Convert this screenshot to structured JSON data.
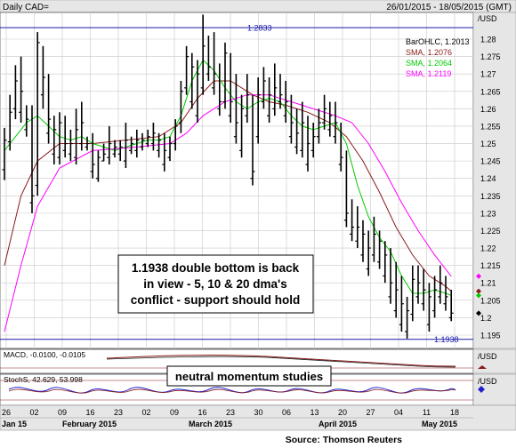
{
  "header": {
    "title": "Daily CAD=",
    "date_range": "26/01/2015 - 18/05/2015 (GMT)"
  },
  "chart_data": {
    "type": "ohlc",
    "instrument": "CAD=",
    "ylim": [
      1.19,
      1.29
    ],
    "y_ticks": [
      "1.28",
      "1.275",
      "1.27",
      "1.265",
      "1.26",
      "1.255",
      "1.25",
      "1.245",
      "1.24",
      "1.235",
      "1.23",
      "1.225",
      "1.22",
      "1.215",
      "1.21",
      "1.205",
      "1.2",
      "1.195"
    ],
    "y_unit": "/USD",
    "x_ticks": [
      "26",
      "02",
      "09",
      "16",
      "23",
      "02",
      "09",
      "16",
      "23",
      "30",
      "06",
      "13",
      "20",
      "27",
      "04",
      "11",
      "18"
    ],
    "x_month_labels": [
      "Jan 15",
      "February 2015",
      "March 2015",
      "April 2015",
      "May 2015"
    ],
    "legend": [
      {
        "text": "BarOHLC, 1.2013",
        "color": "#000000"
      },
      {
        "text": "SMA, 1.2076",
        "color": "#8b1a1a"
      },
      {
        "text": "SMA, 1.2064",
        "color": "#00cc00"
      },
      {
        "text": "SMA, 1.2119",
        "color": "#ff00ff"
      }
    ],
    "reference_lines": [
      {
        "label": "1.2833",
        "value": 1.2833,
        "color": "#1a1aa6"
      },
      {
        "label": "1.1938",
        "value": 1.1938,
        "color": "#1a1aa6"
      }
    ],
    "annotation": {
      "lines": [
        "1.1938 double bottom is back",
        "in view - 5, 10 & 20 dma's",
        "conflict - support should hold"
      ]
    },
    "bars": [
      [
        1.2395,
        1.2545,
        1.2425,
        1.251
      ],
      [
        1.248,
        1.264,
        1.2505,
        1.259
      ],
      [
        1.257,
        1.2725,
        1.26,
        1.268
      ],
      [
        1.256,
        1.275,
        1.259,
        1.265
      ],
      [
        1.252,
        1.261,
        1.254,
        1.257
      ],
      [
        1.23,
        1.261,
        1.233,
        1.235
      ],
      [
        1.235,
        1.282,
        1.238,
        1.279
      ],
      [
        1.26,
        1.278,
        1.264,
        1.269
      ],
      [
        1.25,
        1.27,
        1.253,
        1.257
      ],
      [
        1.244,
        1.258,
        1.247,
        1.254
      ],
      [
        1.244,
        1.259,
        1.246,
        1.256
      ],
      [
        1.246,
        1.258,
        1.248,
        1.25
      ],
      [
        1.245,
        1.254,
        1.247,
        1.25
      ],
      [
        1.244,
        1.26,
        1.246,
        1.254
      ],
      [
        1.248,
        1.262,
        1.25,
        1.256
      ],
      [
        1.248,
        1.252,
        1.249,
        1.25
      ],
      [
        1.24,
        1.253,
        1.242,
        1.244
      ],
      [
        1.239,
        1.248,
        1.24,
        1.246
      ],
      [
        1.245,
        1.25,
        1.245,
        1.247
      ],
      [
        1.244,
        1.255,
        1.246,
        1.25
      ],
      [
        1.246,
        1.251,
        1.247,
        1.249
      ],
      [
        1.245,
        1.251,
        1.247,
        1.249
      ],
      [
        1.243,
        1.256,
        1.245,
        1.251
      ],
      [
        1.247,
        1.252,
        1.248,
        1.25
      ],
      [
        1.246,
        1.254,
        1.248,
        1.251
      ],
      [
        1.248,
        1.253,
        1.249,
        1.251
      ],
      [
        1.249,
        1.254,
        1.25,
        1.252
      ],
      [
        1.248,
        1.256,
        1.25,
        1.253
      ],
      [
        1.246,
        1.253,
        1.248,
        1.251
      ],
      [
        1.242,
        1.253,
        1.244,
        1.248
      ],
      [
        1.245,
        1.252,
        1.246,
        1.25
      ],
      [
        1.248,
        1.257,
        1.25,
        1.255
      ],
      [
        1.253,
        1.268,
        1.256,
        1.265
      ],
      [
        1.264,
        1.278,
        1.266,
        1.275
      ],
      [
        1.26,
        1.276,
        1.262,
        1.272
      ],
      [
        1.256,
        1.274,
        1.258,
        1.27
      ],
      [
        1.264,
        1.287,
        1.266,
        1.278
      ],
      [
        1.268,
        1.281,
        1.27,
        1.272
      ],
      [
        1.264,
        1.282,
        1.266,
        1.27
      ],
      [
        1.258,
        1.273,
        1.26,
        1.262
      ],
      [
        1.26,
        1.279,
        1.262,
        1.276
      ],
      [
        1.256,
        1.276,
        1.258,
        1.262
      ],
      [
        1.25,
        1.27,
        1.252,
        1.256
      ],
      [
        1.246,
        1.264,
        1.248,
        1.26
      ],
      [
        1.256,
        1.27,
        1.258,
        1.264
      ],
      [
        1.238,
        1.264,
        1.24,
        1.242
      ],
      [
        1.25,
        1.269,
        1.252,
        1.264
      ],
      [
        1.26,
        1.272,
        1.262,
        1.268
      ],
      [
        1.256,
        1.269,
        1.258,
        1.264
      ],
      [
        1.258,
        1.273,
        1.26,
        1.266
      ],
      [
        1.26,
        1.27,
        1.262,
        1.264
      ],
      [
        1.256,
        1.268,
        1.258,
        1.262
      ],
      [
        1.25,
        1.264,
        1.252,
        1.256
      ],
      [
        1.247,
        1.26,
        1.249,
        1.253
      ],
      [
        1.246,
        1.262,
        1.248,
        1.256
      ],
      [
        1.242,
        1.258,
        1.244,
        1.25
      ],
      [
        1.246,
        1.256,
        1.248,
        1.252
      ],
      [
        1.25,
        1.26,
        1.252,
        1.256
      ],
      [
        1.254,
        1.264,
        1.256,
        1.26
      ],
      [
        1.252,
        1.262,
        1.254,
        1.258
      ],
      [
        1.25,
        1.262,
        1.252,
        1.256
      ],
      [
        1.242,
        1.256,
        1.244,
        1.246
      ],
      [
        1.226,
        1.248,
        1.228,
        1.23
      ],
      [
        1.222,
        1.234,
        1.224,
        1.226
      ],
      [
        1.22,
        1.232,
        1.222,
        1.226
      ],
      [
        1.216,
        1.228,
        1.218,
        1.224
      ],
      [
        1.212,
        1.225,
        1.214,
        1.22
      ],
      [
        1.216,
        1.229,
        1.218,
        1.224
      ],
      [
        1.214,
        1.225,
        1.216,
        1.222
      ],
      [
        1.21,
        1.222,
        1.212,
        1.218
      ],
      [
        1.204,
        1.22,
        1.206,
        1.21
      ],
      [
        1.2,
        1.216,
        1.202,
        1.208
      ],
      [
        1.196,
        1.212,
        1.198,
        1.204
      ],
      [
        1.194,
        1.206,
        1.196,
        1.202
      ],
      [
        1.199,
        1.215,
        1.201,
        1.211
      ],
      [
        1.204,
        1.215,
        1.206,
        1.21
      ],
      [
        1.202,
        1.214,
        1.204,
        1.208
      ],
      [
        1.196,
        1.21,
        1.198,
        1.206
      ],
      [
        1.2,
        1.212,
        1.202,
        1.208
      ],
      [
        1.204,
        1.215,
        1.206,
        1.21
      ],
      [
        1.202,
        1.212,
        1.204,
        1.206
      ],
      [
        1.199,
        1.208,
        1.2,
        1.2013
      ]
    ],
    "series": [
      {
        "name": "SMA, 1.2076",
        "color": "#8b1a1a",
        "values": [
          [
            0,
            1.215
          ],
          [
            3,
            1.235
          ],
          [
            6,
            1.245
          ],
          [
            10,
            1.25
          ],
          [
            16,
            1.25
          ],
          [
            22,
            1.251
          ],
          [
            28,
            1.252
          ],
          [
            32,
            1.256
          ],
          [
            35,
            1.263
          ],
          [
            38,
            1.268
          ],
          [
            41,
            1.268
          ],
          [
            45,
            1.264
          ],
          [
            48,
            1.262
          ],
          [
            51,
            1.261
          ],
          [
            55,
            1.259
          ],
          [
            59,
            1.256
          ],
          [
            62,
            1.252
          ],
          [
            65,
            1.245
          ],
          [
            68,
            1.236
          ],
          [
            71,
            1.226
          ],
          [
            74,
            1.218
          ],
          [
            77,
            1.212
          ],
          [
            80,
            1.209
          ],
          [
            81,
            1.2076
          ]
        ]
      },
      {
        "name": "SMA, 1.2064",
        "color": "#00cc00",
        "values": [
          [
            0,
            1.248
          ],
          [
            2,
            1.252
          ],
          [
            4,
            1.256
          ],
          [
            6,
            1.258
          ],
          [
            8,
            1.255
          ],
          [
            10,
            1.252
          ],
          [
            12,
            1.251
          ],
          [
            14,
            1.252
          ],
          [
            16,
            1.25
          ],
          [
            18,
            1.249
          ],
          [
            20,
            1.248
          ],
          [
            22,
            1.249
          ],
          [
            24,
            1.25
          ],
          [
            26,
            1.251
          ],
          [
            28,
            1.251
          ],
          [
            30,
            1.252
          ],
          [
            32,
            1.258
          ],
          [
            34,
            1.268
          ],
          [
            36,
            1.274
          ],
          [
            38,
            1.271
          ],
          [
            40,
            1.266
          ],
          [
            42,
            1.262
          ],
          [
            44,
            1.26
          ],
          [
            46,
            1.262
          ],
          [
            48,
            1.263
          ],
          [
            50,
            1.262
          ],
          [
            52,
            1.258
          ],
          [
            54,
            1.255
          ],
          [
            56,
            1.254
          ],
          [
            58,
            1.255
          ],
          [
            60,
            1.256
          ],
          [
            62,
            1.25
          ],
          [
            64,
            1.238
          ],
          [
            66,
            1.229
          ],
          [
            68,
            1.223
          ],
          [
            70,
            1.219
          ],
          [
            72,
            1.212
          ],
          [
            74,
            1.207
          ],
          [
            76,
            1.207
          ],
          [
            78,
            1.208
          ],
          [
            80,
            1.207
          ],
          [
            81,
            1.2064
          ]
        ]
      },
      {
        "name": "SMA, 1.2119",
        "color": "#ff00ff",
        "values": [
          [
            0,
            1.196
          ],
          [
            3,
            1.215
          ],
          [
            6,
            1.232
          ],
          [
            10,
            1.243
          ],
          [
            16,
            1.248
          ],
          [
            24,
            1.249
          ],
          [
            30,
            1.25
          ],
          [
            33,
            1.253
          ],
          [
            36,
            1.258
          ],
          [
            40,
            1.262
          ],
          [
            44,
            1.264
          ],
          [
            48,
            1.264
          ],
          [
            52,
            1.262
          ],
          [
            56,
            1.26
          ],
          [
            60,
            1.258
          ],
          [
            63,
            1.256
          ],
          [
            66,
            1.25
          ],
          [
            69,
            1.242
          ],
          [
            72,
            1.233
          ],
          [
            75,
            1.225
          ],
          [
            78,
            1.218
          ],
          [
            81,
            1.2119
          ]
        ]
      }
    ]
  },
  "macd": {
    "label": "MACD, -0.0100, -0.0105",
    "axis_unit": "/USD"
  },
  "stochs": {
    "label": "StochS, 42.629, 53.998",
    "axis_unit": "/USD"
  },
  "callout": "neutral momentum studies",
  "source": "Source: Thomson Reuters"
}
